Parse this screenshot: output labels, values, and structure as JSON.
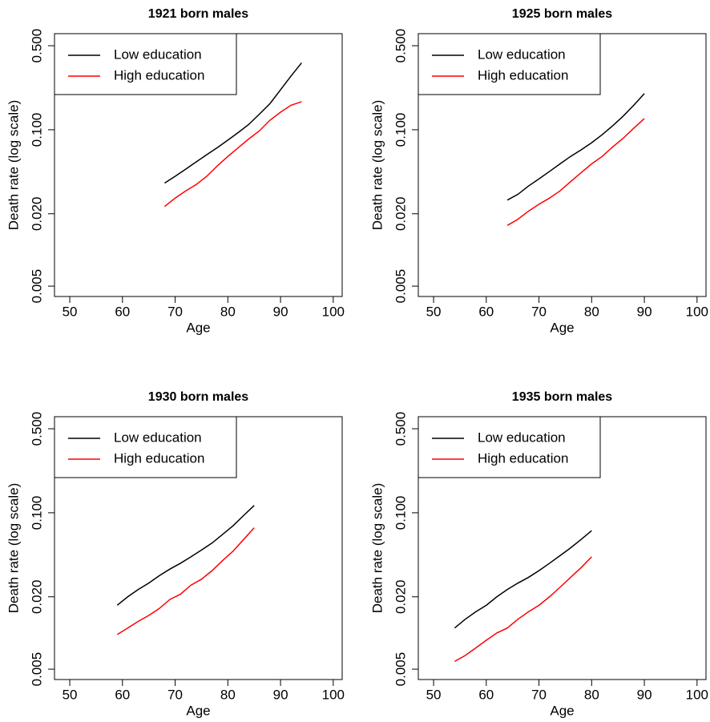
{
  "chart_data": [
    {
      "type": "line",
      "title": "1921 born males",
      "x_label": "Age",
      "y_label": "Death rate (log scale)",
      "log_y": true,
      "legend": "top-left",
      "x": [
        68,
        70,
        72,
        74,
        76,
        78,
        80,
        82,
        84,
        86,
        88,
        90,
        92,
        94
      ],
      "series": [
        {
          "name": "Low education",
          "color": "#000000",
          "values": [
            0.036,
            0.041,
            0.047,
            0.054,
            0.062,
            0.071,
            0.082,
            0.095,
            0.111,
            0.135,
            0.165,
            0.215,
            0.28,
            0.36
          ]
        },
        {
          "name": "High education",
          "color": "#ff0000",
          "values": [
            0.023,
            0.027,
            0.031,
            0.035,
            0.041,
            0.05,
            0.06,
            0.071,
            0.084,
            0.098,
            0.12,
            0.14,
            0.16,
            0.171
          ]
        }
      ],
      "xlim": [
        47.1,
        101.7
      ],
      "xticks": [
        50,
        60,
        70,
        80,
        90,
        100
      ],
      "ylim": [
        0.0041,
        0.63
      ],
      "yticks": [
        {
          "value": 0.005,
          "label": "0.005"
        },
        {
          "value": 0.02,
          "label": "0.020"
        },
        {
          "value": 0.1,
          "label": "0.100"
        },
        {
          "value": 0.5,
          "label": "0.500"
        }
      ]
    },
    {
      "type": "line",
      "title": "1925 born males",
      "x_label": "Age",
      "y_label": "Death rate (log scale)",
      "log_y": true,
      "legend": "top-left",
      "x": [
        64,
        66,
        68,
        70,
        72,
        74,
        76,
        78,
        80,
        82,
        84,
        86,
        88,
        90
      ],
      "series": [
        {
          "name": "Low education",
          "color": "#000000",
          "values": [
            0.026,
            0.029,
            0.034,
            0.039,
            0.045,
            0.052,
            0.06,
            0.068,
            0.078,
            0.091,
            0.108,
            0.13,
            0.16,
            0.2
          ]
        },
        {
          "name": "High education",
          "color": "#ff0000",
          "values": [
            0.016,
            0.018,
            0.021,
            0.024,
            0.027,
            0.031,
            0.037,
            0.044,
            0.052,
            0.06,
            0.072,
            0.085,
            0.103,
            0.124
          ]
        }
      ],
      "xlim": [
        47.1,
        101.7
      ],
      "xticks": [
        50,
        60,
        70,
        80,
        90,
        100
      ],
      "ylim": [
        0.0041,
        0.63
      ],
      "yticks": [
        {
          "value": 0.005,
          "label": "0.005"
        },
        {
          "value": 0.02,
          "label": "0.020"
        },
        {
          "value": 0.1,
          "label": "0.100"
        },
        {
          "value": 0.5,
          "label": "0.500"
        }
      ]
    },
    {
      "type": "line",
      "title": "1930 born males",
      "x_label": "Age",
      "y_label": "Death rate (log scale)",
      "log_y": true,
      "legend": "top-left",
      "x": [
        59,
        61,
        63,
        65,
        67,
        69,
        71,
        73,
        75,
        77,
        79,
        81,
        83,
        85
      ],
      "series": [
        {
          "name": "Low education",
          "color": "#000000",
          "values": [
            0.017,
            0.02,
            0.023,
            0.026,
            0.03,
            0.034,
            0.038,
            0.043,
            0.049,
            0.056,
            0.066,
            0.078,
            0.095,
            0.115
          ]
        },
        {
          "name": "High education",
          "color": "#ff0000",
          "values": [
            0.0097,
            0.011,
            0.0125,
            0.014,
            0.016,
            0.019,
            0.021,
            0.025,
            0.028,
            0.033,
            0.04,
            0.048,
            0.06,
            0.075
          ]
        }
      ],
      "xlim": [
        47.1,
        101.7
      ],
      "xticks": [
        50,
        60,
        70,
        80,
        90,
        100
      ],
      "ylim": [
        0.0041,
        0.63
      ],
      "yticks": [
        {
          "value": 0.005,
          "label": "0.005"
        },
        {
          "value": 0.02,
          "label": "0.020"
        },
        {
          "value": 0.1,
          "label": "0.100"
        },
        {
          "value": 0.5,
          "label": "0.500"
        }
      ]
    },
    {
      "type": "line",
      "title": "1935 born males",
      "x_label": "Age",
      "y_label": "Death rate (log scale)",
      "log_y": true,
      "legend": "top-left",
      "x": [
        54,
        56,
        58,
        60,
        62,
        64,
        66,
        68,
        70,
        72,
        74,
        76,
        78,
        80
      ],
      "series": [
        {
          "name": "Low education",
          "color": "#000000",
          "values": [
            0.011,
            0.013,
            0.015,
            0.017,
            0.02,
            0.023,
            0.026,
            0.029,
            0.033,
            0.038,
            0.044,
            0.051,
            0.06,
            0.071
          ]
        },
        {
          "name": "High education",
          "color": "#ff0000",
          "values": [
            0.0058,
            0.0065,
            0.0075,
            0.0087,
            0.01,
            0.011,
            0.013,
            0.015,
            0.017,
            0.02,
            0.024,
            0.029,
            0.035,
            0.043
          ]
        }
      ],
      "xlim": [
        47.1,
        101.7
      ],
      "xticks": [
        50,
        60,
        70,
        80,
        90,
        100
      ],
      "ylim": [
        0.0041,
        0.63
      ],
      "yticks": [
        {
          "value": 0.005,
          "label": "0.005"
        },
        {
          "value": 0.02,
          "label": "0.020"
        },
        {
          "value": 0.1,
          "label": "0.100"
        },
        {
          "value": 0.5,
          "label": "0.500"
        }
      ]
    }
  ]
}
